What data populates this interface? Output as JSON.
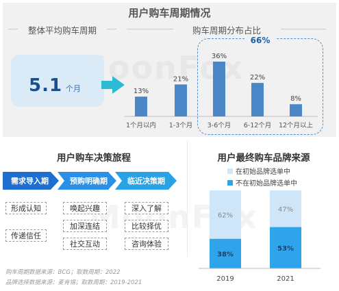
{
  "title": "用户购车周期情况",
  "left_panel": {
    "subtitle": "整体平均购车周期",
    "value": "5.1",
    "unit": "个月"
  },
  "right_panel": {
    "subtitle": "购车周期分布占比",
    "highlight": "66%"
  },
  "journey": {
    "title": "用户购车决策旅程",
    "stages": [
      "需求导入期",
      "预购明确期",
      "临近决策期"
    ],
    "tags": [
      [
        "形成认知",
        "传递信任"
      ],
      [
        "唤起兴趣",
        "加深连结",
        "社交互动"
      ],
      [
        "深入了解",
        "比较择优",
        "咨询体验"
      ]
    ]
  },
  "brand": {
    "title": "用户最终购车品牌来源"
  },
  "notes": [
    "购车周期数据来源：BCG；取数周期：2022",
    "品牌选择数据来源：麦肯锡；取数周期：2019-2021"
  ],
  "watermark": "MoonFox",
  "colors": {
    "bar": "#4a86c8",
    "stacked_light": "#cfe6f8",
    "stacked_dark": "#2fa4ea",
    "accent": "#1e5fa8",
    "arrow": "#2bbbd4"
  },
  "chart_data": [
    {
      "type": "bar",
      "categories": [
        "1个月以内",
        "1-3个月",
        "3-6个月",
        "6-12个月",
        "12个月以上"
      ],
      "values": [
        13,
        21,
        36,
        22,
        8
      ],
      "data_labels": [
        "13%",
        "21%",
        "36%",
        "22%",
        "8%"
      ]
    },
    {
      "type": "bar",
      "stacked": true,
      "categories": [
        "2019",
        "2021"
      ],
      "series": [
        {
          "name": "不在初始品牌选单中",
          "values": [
            38,
            53
          ],
          "labels": [
            "38%",
            "53%"
          ]
        },
        {
          "name": "在初始品牌选单中",
          "values": [
            62,
            47
          ],
          "labels": [
            "62%",
            "47%"
          ]
        }
      ],
      "legend_position": "top"
    }
  ]
}
